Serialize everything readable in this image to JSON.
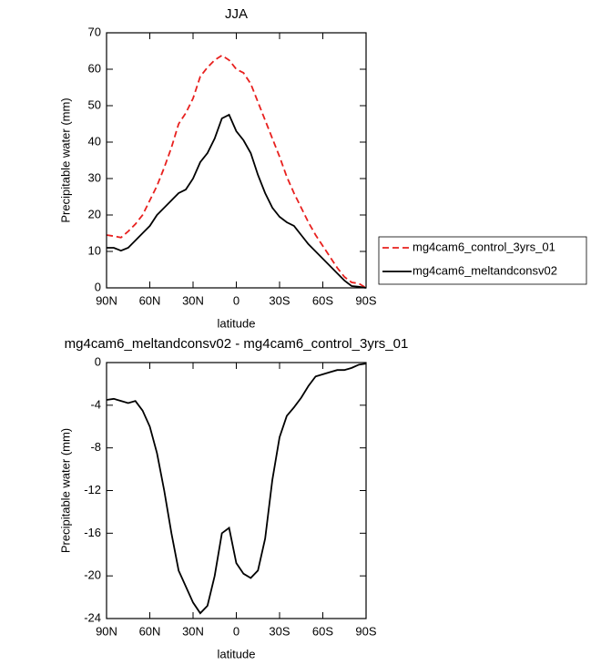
{
  "chart_data": [
    {
      "type": "line",
      "title": "JJA",
      "x_label": "latitude",
      "y_label": "Precipitable water (mm)",
      "x": [
        90,
        85,
        80,
        75,
        70,
        65,
        60,
        55,
        50,
        45,
        40,
        35,
        30,
        25,
        20,
        15,
        10,
        5,
        0,
        -5,
        -10,
        -15,
        -20,
        -25,
        -30,
        -35,
        -40,
        -45,
        -50,
        -55,
        -60,
        -65,
        -70,
        -75,
        -80,
        -85,
        -90
      ],
      "series": [
        {
          "name": "mg4cam6_control_3yrs_01",
          "color": "#e8201e",
          "linestyle": "dashed",
          "values": [
            14.5,
            14.2,
            13.8,
            15.5,
            17.5,
            20,
            24,
            28,
            33,
            38.5,
            45,
            48,
            52,
            58,
            60.5,
            62.5,
            63.8,
            62.5,
            60,
            59,
            56,
            51,
            46,
            41,
            36,
            30.5,
            26,
            22,
            18,
            14.5,
            11.5,
            8.5,
            5.5,
            3,
            1.5,
            1.2,
            0
          ]
        },
        {
          "name": "mg4cam6_meltandconsv02",
          "color": "#000000",
          "linestyle": "solid",
          "values": [
            11,
            11,
            10.2,
            11,
            13,
            15,
            17,
            20,
            22,
            24,
            26,
            27,
            30,
            34.5,
            37,
            41,
            46.5,
            47.5,
            43,
            40.5,
            37,
            31,
            26,
            22,
            19.5,
            18,
            17,
            14.5,
            12,
            10,
            8,
            6,
            4,
            2,
            0.5,
            0.3,
            0
          ]
        }
      ],
      "xlim": [
        90,
        -90
      ],
      "xticks": [
        {
          "value": 90,
          "label": "90N"
        },
        {
          "value": 60,
          "label": "60N"
        },
        {
          "value": 30,
          "label": "30N"
        },
        0,
        {
          "value": -30,
          "label": "30S"
        },
        {
          "value": -60,
          "label": "60S"
        },
        {
          "value": -90,
          "label": "90S"
        }
      ],
      "ylim": [
        0,
        70
      ],
      "yticks": [
        0,
        10,
        20,
        30,
        40,
        50,
        60,
        70
      ],
      "legend": "right"
    },
    {
      "type": "line",
      "title": "mg4cam6_meltandconsv02 - mg4cam6_control_3yrs_01",
      "x_label": "latitude",
      "y_label": "Precipitable water (mm)",
      "x": [
        90,
        85,
        80,
        75,
        70,
        65,
        60,
        55,
        50,
        45,
        40,
        35,
        30,
        25,
        20,
        15,
        10,
        5,
        0,
        -5,
        -10,
        -15,
        -20,
        -25,
        -30,
        -35,
        -40,
        -45,
        -50,
        -55,
        -60,
        -65,
        -70,
        -75,
        -80,
        -85,
        -90
      ],
      "values": [
        -3.5,
        -3.4,
        -3.6,
        -3.8,
        -3.6,
        -4.5,
        -6,
        -8.5,
        -12,
        -16,
        -19.5,
        -21,
        -22.5,
        -23.5,
        -22.8,
        -20,
        -16,
        -15.5,
        -18.8,
        -19.8,
        -20.2,
        -19.5,
        -16.5,
        -11,
        -7,
        -5,
        -4.2,
        -3.3,
        -2.2,
        -1.3,
        -1.1,
        -0.9,
        -0.7,
        -0.7,
        -0.5,
        -0.2,
        -0.1
      ],
      "color": "#000000",
      "xlim": [
        90,
        -90
      ],
      "xticks": [
        {
          "value": 90,
          "label": "90N"
        },
        {
          "value": 60,
          "label": "60N"
        },
        {
          "value": 30,
          "label": "30N"
        },
        0,
        {
          "value": -30,
          "label": "30S"
        },
        {
          "value": -60,
          "label": "60S"
        },
        {
          "value": -90,
          "label": "90S"
        }
      ],
      "ylim": [
        -24,
        0
      ],
      "yticks": [
        -24,
        -20,
        -16,
        -12,
        -8,
        -4,
        0
      ]
    }
  ]
}
